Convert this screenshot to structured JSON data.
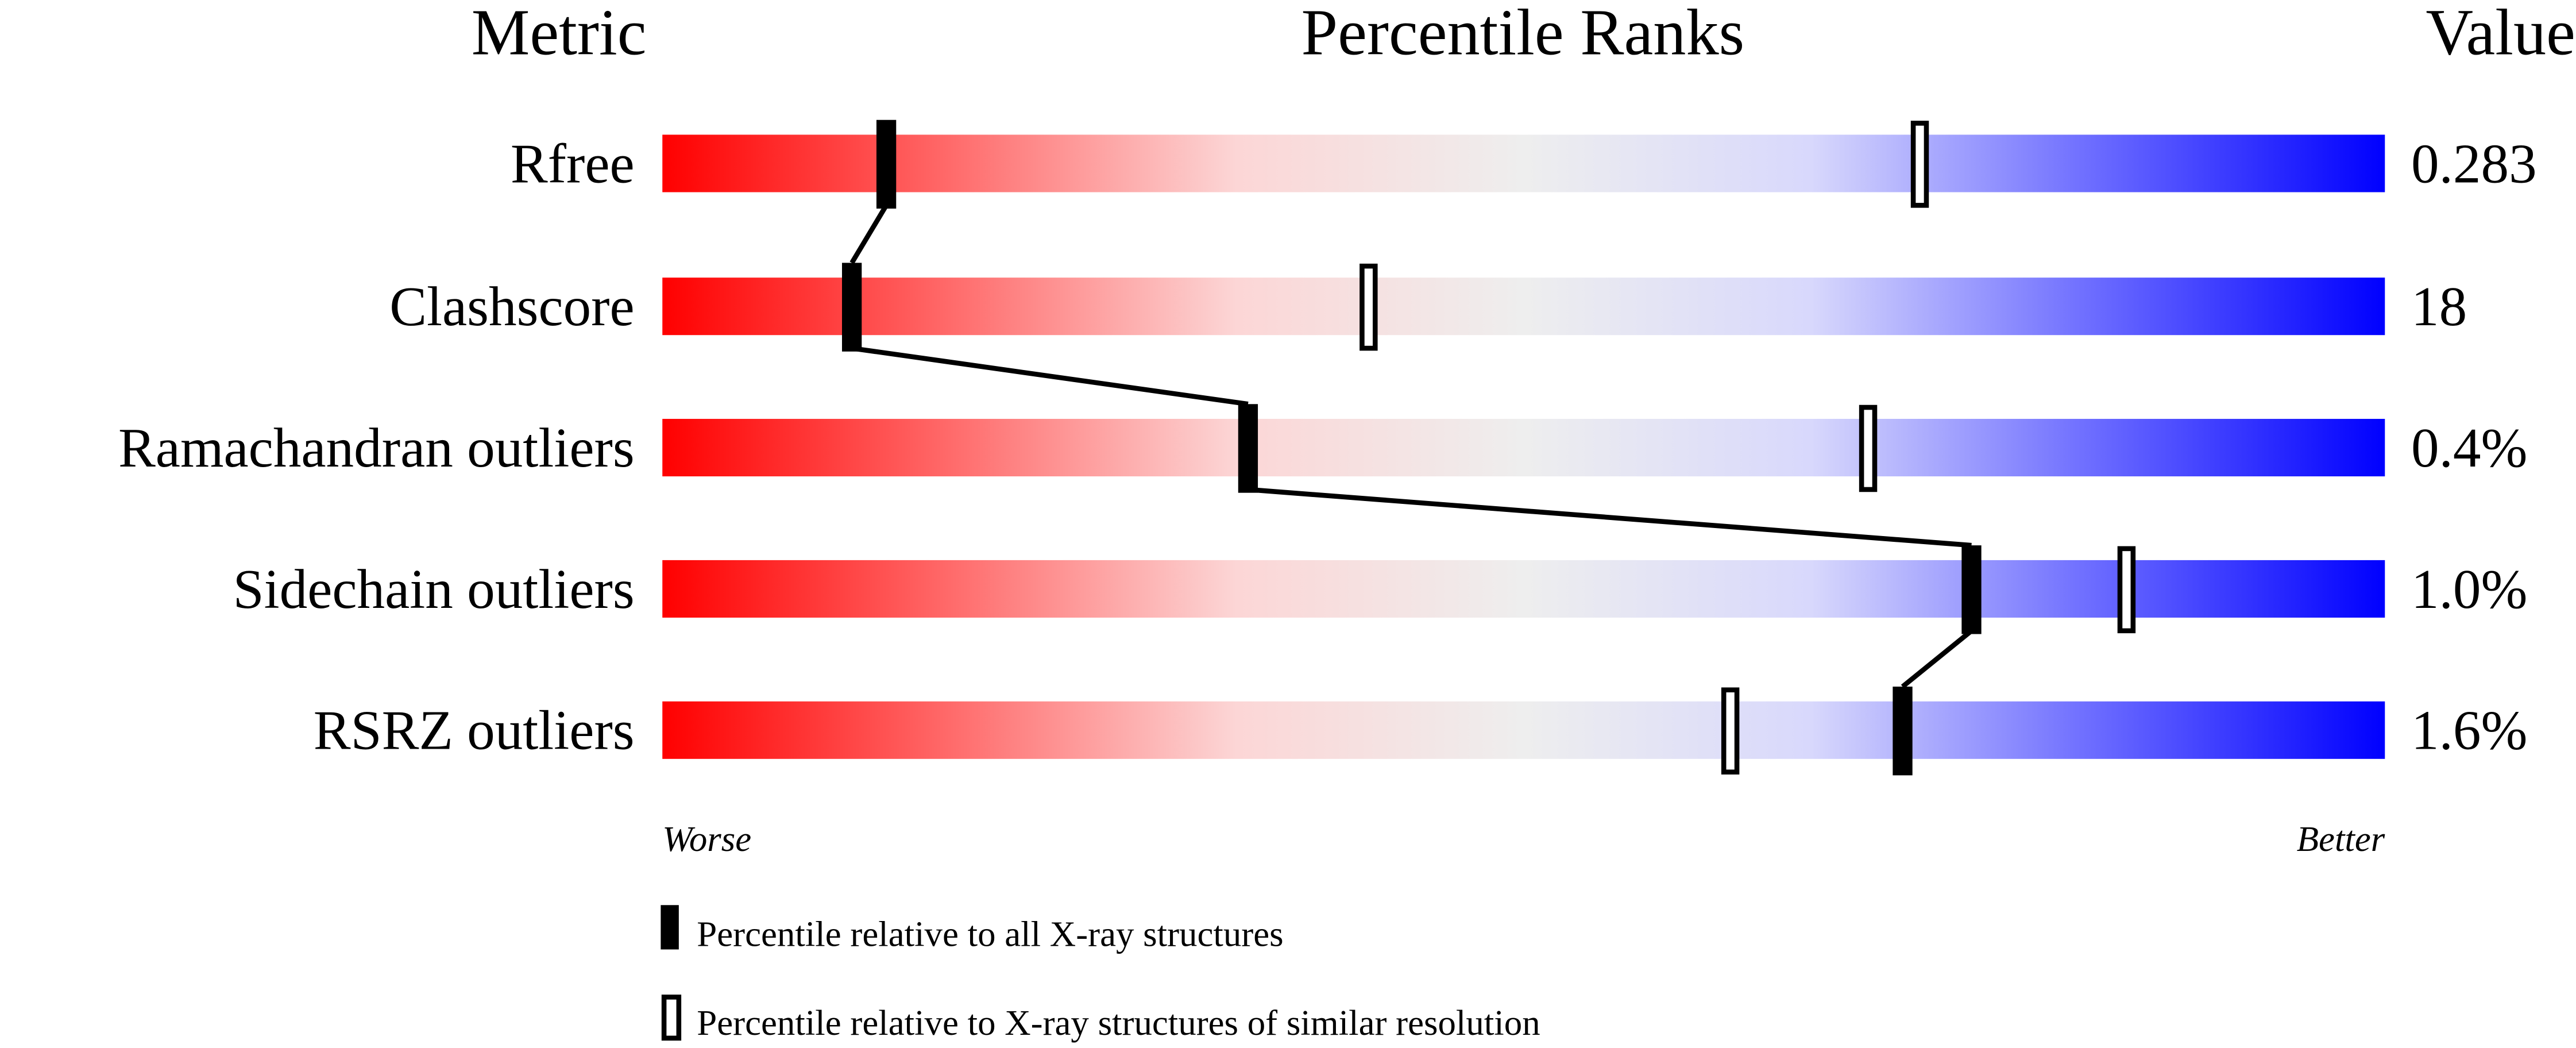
{
  "chart_data": {
    "type": "percentile-slider",
    "headers": {
      "metric": "Metric",
      "ranks": "Percentile Ranks",
      "value": "Value"
    },
    "xlim": [
      0,
      100
    ],
    "scale_labels": {
      "left": "Worse",
      "right": "Better"
    },
    "gradient_colors": [
      "#ff0000",
      "#ff6a6a",
      "#fcd6d6",
      "#eeeeee",
      "#d8d8fc",
      "#6a6aff",
      "#0000ff"
    ],
    "metrics": [
      {
        "name": "Rfree",
        "value": "0.283",
        "percentile_all": 13,
        "percentile_similar": 73
      },
      {
        "name": "Clashscore",
        "value": "18",
        "percentile_all": 11,
        "percentile_similar": 41
      },
      {
        "name": "Ramachandran outliers",
        "value": "0.4%",
        "percentile_all": 34,
        "percentile_similar": 70
      },
      {
        "name": "Sidechain outliers",
        "value": "1.0%",
        "percentile_all": 76,
        "percentile_similar": 85
      },
      {
        "name": "RSRZ outliers",
        "value": "1.6%",
        "percentile_all": 72,
        "percentile_similar": 62
      }
    ],
    "legend": [
      {
        "marker": "filled",
        "label": "Percentile relative to all X-ray structures"
      },
      {
        "marker": "open",
        "label": "Percentile relative to X-ray structures of similar resolution"
      }
    ]
  }
}
